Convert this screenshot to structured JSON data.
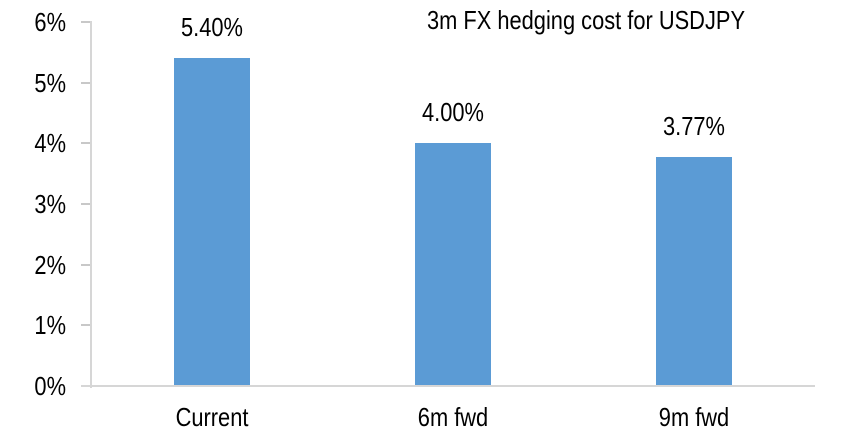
{
  "chart_data": {
    "type": "bar",
    "title": "3m FX hedging cost for USDJPY",
    "categories": [
      "Current",
      "6m fwd",
      "9m fwd"
    ],
    "values": [
      5.4,
      4.0,
      3.77
    ],
    "value_labels": [
      "5.40%",
      "4.00%",
      "3.77%"
    ],
    "xlabel": "",
    "ylabel": "",
    "ylim": [
      0,
      6
    ],
    "y_tick_values": [
      0,
      1,
      2,
      3,
      4,
      5,
      6
    ],
    "y_tick_labels": [
      "0%",
      "1%",
      "2%",
      "3%",
      "4%",
      "5%",
      "6%"
    ],
    "grid": false,
    "legend": "none",
    "colors": {
      "bar": "#5B9BD5",
      "axis_line": "#D6D6D6",
      "tick": "#C8C8C8",
      "text": "#000000",
      "background": "#FFFFFF"
    }
  }
}
